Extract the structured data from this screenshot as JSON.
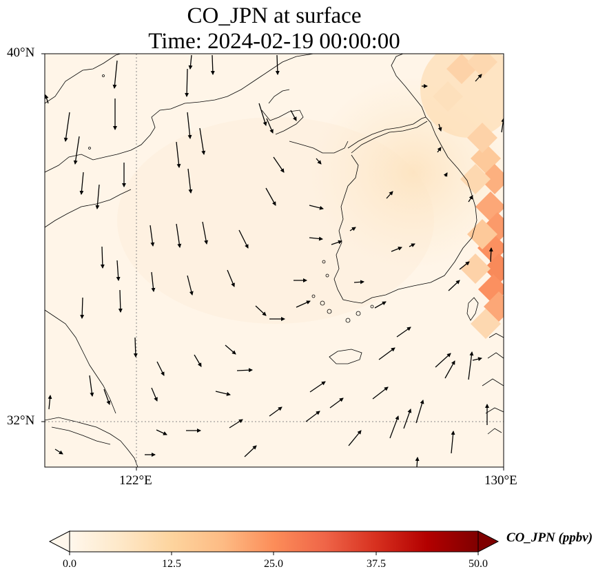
{
  "title": {
    "line1": "CO_JPN at surface",
    "line2": "Time: 2024-02-19 00:00:00"
  },
  "axes": {
    "lat_ticks": [
      "40°N",
      "32°N"
    ],
    "lon_ticks": [
      "122°E",
      "130°E"
    ],
    "lon_range_deg": [
      120,
      130
    ],
    "lat_range_deg": [
      31,
      40
    ],
    "gridlines": "dotted at 122°E and 32°N"
  },
  "colorbar": {
    "label": "CO_JPN (ppbv)",
    "ticks": [
      "0.0",
      "12.5",
      "25.0",
      "37.5",
      "50.0"
    ],
    "range": [
      0,
      50
    ],
    "colormap": "OrRd",
    "extend": "both",
    "colors": [
      "#fff7ec",
      "#fee8c8",
      "#fdd49e",
      "#fdbb84",
      "#fc8d59",
      "#ef6548",
      "#d7301f",
      "#b30000",
      "#7f0000"
    ]
  },
  "field": {
    "description_values_ppbv": "background ~1-3 ppbv; 5-10 ppbv over Korea; up to ~20 ppbv along the eastern edge near 129.5-130°E, 34.5-36.5°N",
    "max_ppbv": 20
  },
  "wind_vectors": "black quiver arrows; southward over Yellow Sea, northeastward in the south-east"
}
